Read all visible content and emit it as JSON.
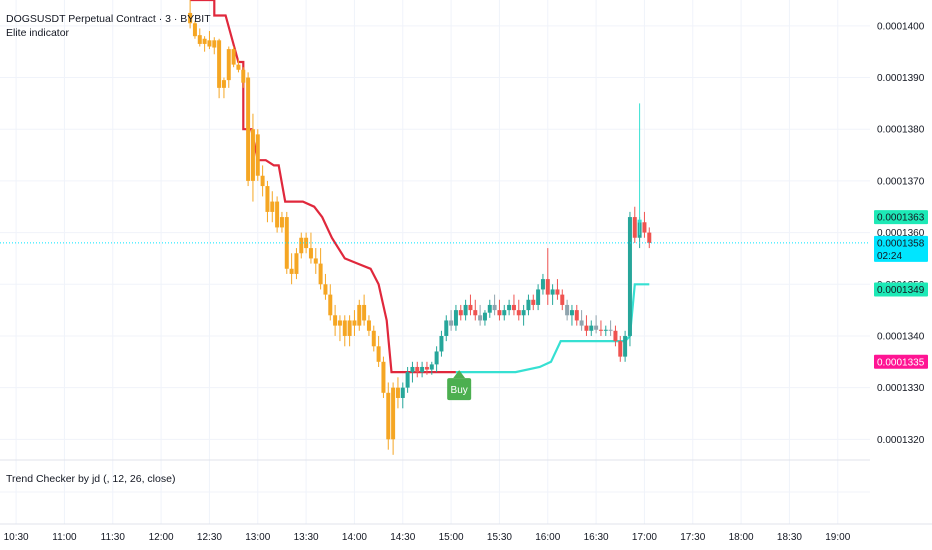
{
  "header": {
    "symbol_line": "DOGSUSDT Perpetual Contract · 3 · BYBIT",
    "indicator_name": "Elite indicator"
  },
  "pane2": {
    "indicator_label": "Trend Checker by jd (, 12, 26, close)"
  },
  "colors": {
    "background": "#ffffff",
    "grid": "#f0f3fa",
    "bull_candle": "#26a69a",
    "bear_candle": "#ef5350",
    "neutral_candle": "#90a4ae",
    "highlight_candle": "#f5a623",
    "resistance_line": "#e0283c",
    "support_line": "#36e0d2",
    "buy_label": "#4caf50"
  },
  "price_tags": [
    {
      "label": "0.0001363",
      "bg": "#1de9b6",
      "fg": "#131722"
    },
    {
      "label": "0.0001358",
      "sublabel": "02:24",
      "bg": "#00e5ff",
      "fg": "#131722"
    },
    {
      "label": "0.0001349",
      "bg": "#1de9b6",
      "fg": "#131722"
    },
    {
      "label": "0.0001335",
      "bg": "#ff1493",
      "fg": "#ffffff"
    }
  ],
  "buy_label": "Buy",
  "chart_data": {
    "type": "candlestick",
    "ylim": [
      0.0001316,
      0.0001405
    ],
    "y_ticks": [
      {
        "value": 0.000132,
        "label": "0.0001320"
      },
      {
        "value": 0.000133,
        "label": "0.0001330"
      },
      {
        "value": 0.000134,
        "label": "0.0001340"
      },
      {
        "value": 0.000135,
        "label": "0.0001350"
      },
      {
        "value": 0.000136,
        "label": "0.0001360"
      },
      {
        "value": 0.000137,
        "label": "0.0001370"
      },
      {
        "value": 0.000138,
        "label": "0.0001380"
      },
      {
        "value": 0.000139,
        "label": "0.0001390"
      },
      {
        "value": 0.00014,
        "label": "0.0001400"
      }
    ],
    "x_ticks": [
      "10:30",
      "11:00",
      "11:30",
      "12:00",
      "12:30",
      "13:00",
      "13:30",
      "14:00",
      "14:30",
      "15:00",
      "15:30",
      "16:00",
      "16:30",
      "17:00",
      "17:30",
      "18:00",
      "18:30",
      "19:00"
    ],
    "x_range_minutes": [
      620,
      1160
    ],
    "current_price": 0.0001358,
    "candles": [
      {
        "t": 738,
        "o": 0.00014025,
        "h": 0.0001406,
        "l": 0.00013995,
        "c": 0.00014005
      },
      {
        "t": 741,
        "o": 0.00014005,
        "h": 0.0001401,
        "l": 0.00013975,
        "c": 0.0001398
      },
      {
        "t": 744,
        "o": 0.00013982,
        "h": 0.00013995,
        "l": 0.0001396,
        "c": 0.00013965
      },
      {
        "t": 747,
        "o": 0.00013965,
        "h": 0.0001398,
        "l": 0.0001395,
        "c": 0.00013975
      },
      {
        "t": 750,
        "o": 0.00013972,
        "h": 0.0001399,
        "l": 0.00013955,
        "c": 0.0001396
      },
      {
        "t": 753,
        "o": 0.00013958,
        "h": 0.00013978,
        "l": 0.00013945,
        "c": 0.00013972
      },
      {
        "t": 756,
        "o": 0.00013972,
        "h": 0.00013975,
        "l": 0.0001386,
        "c": 0.0001388
      },
      {
        "t": 759,
        "o": 0.0001388,
        "h": 0.000139,
        "l": 0.0001386,
        "c": 0.00013895
      },
      {
        "t": 762,
        "o": 0.00013895,
        "h": 0.0001396,
        "l": 0.0001388,
        "c": 0.00013955
      },
      {
        "t": 765,
        "o": 0.00013955,
        "h": 0.0001396,
        "l": 0.0001392,
        "c": 0.00013925
      },
      {
        "t": 768,
        "o": 0.00013925,
        "h": 0.00013935,
        "l": 0.0001391,
        "c": 0.00013915
      },
      {
        "t": 771,
        "o": 0.00013915,
        "h": 0.0001392,
        "l": 0.0001388,
        "c": 0.0001389
      },
      {
        "t": 774,
        "o": 0.000139,
        "h": 0.0001391,
        "l": 0.0001369,
        "c": 0.000137
      },
      {
        "t": 777,
        "o": 0.000137,
        "h": 0.0001383,
        "l": 0.0001366,
        "c": 0.000138
      },
      {
        "t": 780,
        "o": 0.0001379,
        "h": 0.000138,
        "l": 0.000137,
        "c": 0.0001371
      },
      {
        "t": 783,
        "o": 0.0001371,
        "h": 0.0001373,
        "l": 0.0001367,
        "c": 0.0001369
      },
      {
        "t": 786,
        "o": 0.0001369,
        "h": 0.000137,
        "l": 0.0001362,
        "c": 0.0001364
      },
      {
        "t": 789,
        "o": 0.0001364,
        "h": 0.0001368,
        "l": 0.0001362,
        "c": 0.0001366
      },
      {
        "t": 792,
        "o": 0.0001366,
        "h": 0.0001367,
        "l": 0.000136,
        "c": 0.0001361
      },
      {
        "t": 795,
        "o": 0.0001361,
        "h": 0.0001364,
        "l": 0.000136,
        "c": 0.0001363
      },
      {
        "t": 798,
        "o": 0.0001363,
        "h": 0.0001364,
        "l": 0.0001352,
        "c": 0.0001353
      },
      {
        "t": 801,
        "o": 0.0001353,
        "h": 0.0001356,
        "l": 0.000135,
        "c": 0.0001352
      },
      {
        "t": 804,
        "o": 0.0001352,
        "h": 0.0001357,
        "l": 0.0001351,
        "c": 0.0001356
      },
      {
        "t": 807,
        "o": 0.0001356,
        "h": 0.000136,
        "l": 0.0001355,
        "c": 0.0001359
      },
      {
        "t": 810,
        "o": 0.0001359,
        "h": 0.000136,
        "l": 0.0001356,
        "c": 0.0001357
      },
      {
        "t": 813,
        "o": 0.0001357,
        "h": 0.000136,
        "l": 0.0001354,
        "c": 0.0001355
      },
      {
        "t": 816,
        "o": 0.0001355,
        "h": 0.0001357,
        "l": 0.0001352,
        "c": 0.0001354
      },
      {
        "t": 819,
        "o": 0.0001354,
        "h": 0.0001357,
        "l": 0.0001349,
        "c": 0.000135
      },
      {
        "t": 822,
        "o": 0.000135,
        "h": 0.0001352,
        "l": 0.0001347,
        "c": 0.0001348
      },
      {
        "t": 825,
        "o": 0.0001348,
        "h": 0.000135,
        "l": 0.0001343,
        "c": 0.0001344
      },
      {
        "t": 828,
        "o": 0.0001344,
        "h": 0.0001346,
        "l": 0.000134,
        "c": 0.0001342
      },
      {
        "t": 831,
        "o": 0.0001342,
        "h": 0.0001344,
        "l": 0.0001339,
        "c": 0.0001343
      },
      {
        "t": 834,
        "o": 0.0001343,
        "h": 0.0001344,
        "l": 0.0001338,
        "c": 0.000134
      },
      {
        "t": 837,
        "o": 0.000134,
        "h": 0.0001344,
        "l": 0.0001338,
        "c": 0.0001343
      },
      {
        "t": 840,
        "o": 0.0001343,
        "h": 0.0001345,
        "l": 0.000134,
        "c": 0.0001342
      },
      {
        "t": 843,
        "o": 0.0001342,
        "h": 0.0001347,
        "l": 0.0001341,
        "c": 0.0001346
      },
      {
        "t": 846,
        "o": 0.0001346,
        "h": 0.0001348,
        "l": 0.0001342,
        "c": 0.0001343
      },
      {
        "t": 849,
        "o": 0.0001343,
        "h": 0.0001344,
        "l": 0.000134,
        "c": 0.0001341
      },
      {
        "t": 852,
        "o": 0.0001341,
        "h": 0.0001342,
        "l": 0.0001337,
        "c": 0.0001338
      },
      {
        "t": 855,
        "o": 0.0001338,
        "h": 0.000134,
        "l": 0.0001334,
        "c": 0.0001335
      },
      {
        "t": 858,
        "o": 0.0001335,
        "h": 0.0001336,
        "l": 0.0001328,
        "c": 0.0001329
      },
      {
        "t": 861,
        "o": 0.0001329,
        "h": 0.0001331,
        "l": 0.0001318,
        "c": 0.000132
      },
      {
        "t": 864,
        "o": 0.000132,
        "h": 0.0001331,
        "l": 0.0001317,
        "c": 0.000133
      },
      {
        "t": 867,
        "o": 0.000133,
        "h": 0.0001332,
        "l": 0.0001326,
        "c": 0.0001328
      },
      {
        "t": 870,
        "o": 0.0001328,
        "h": 0.0001331,
        "l": 0.0001326,
        "c": 0.000133
      },
      {
        "t": 873,
        "o": 0.000133,
        "h": 0.0001334,
        "l": 0.0001329,
        "c": 0.0001333
      },
      {
        "t": 876,
        "o": 0.0001333,
        "h": 0.0001335,
        "l": 0.0001331,
        "c": 0.0001334
      },
      {
        "t": 879,
        "o": 0.0001334,
        "h": 0.0001335,
        "l": 0.0001332,
        "c": 0.0001333
      },
      {
        "t": 882,
        "o": 0.0001333,
        "h": 0.0001335,
        "l": 0.0001332,
        "c": 0.0001334
      },
      {
        "t": 885,
        "o": 0.0001334,
        "h": 0.0001335,
        "l": 0.00013325,
        "c": 0.00013335
      },
      {
        "t": 888,
        "o": 0.00013335,
        "h": 0.0001335,
        "l": 0.00013325,
        "c": 0.00013345
      },
      {
        "t": 891,
        "o": 0.00013345,
        "h": 0.0001338,
        "l": 0.0001333,
        "c": 0.0001337
      },
      {
        "t": 894,
        "o": 0.0001337,
        "h": 0.0001341,
        "l": 0.0001336,
        "c": 0.000134
      },
      {
        "t": 897,
        "o": 0.000134,
        "h": 0.0001344,
        "l": 0.0001339,
        "c": 0.0001343
      },
      {
        "t": 900,
        "o": 0.0001343,
        "h": 0.0001345,
        "l": 0.0001341,
        "c": 0.0001342
      },
      {
        "t": 903,
        "o": 0.0001342,
        "h": 0.0001346,
        "l": 0.0001341,
        "c": 0.0001345
      },
      {
        "t": 906,
        "o": 0.0001345,
        "h": 0.0001346,
        "l": 0.0001343,
        "c": 0.0001344
      },
      {
        "t": 909,
        "o": 0.0001344,
        "h": 0.0001347,
        "l": 0.0001343,
        "c": 0.0001346
      },
      {
        "t": 912,
        "o": 0.0001346,
        "h": 0.0001348,
        "l": 0.0001344,
        "c": 0.0001345
      },
      {
        "t": 915,
        "o": 0.0001345,
        "h": 0.0001347,
        "l": 0.0001343,
        "c": 0.0001344
      },
      {
        "t": 918,
        "o": 0.0001344,
        "h": 0.0001346,
        "l": 0.0001342,
        "c": 0.0001343
      },
      {
        "t": 921,
        "o": 0.0001343,
        "h": 0.0001345,
        "l": 0.0001342,
        "c": 0.00013445
      },
      {
        "t": 924,
        "o": 0.00013445,
        "h": 0.0001347,
        "l": 0.00013435,
        "c": 0.0001346
      },
      {
        "t": 927,
        "o": 0.0001346,
        "h": 0.0001348,
        "l": 0.0001344,
        "c": 0.0001345
      },
      {
        "t": 930,
        "o": 0.0001345,
        "h": 0.0001347,
        "l": 0.0001343,
        "c": 0.0001344
      },
      {
        "t": 933,
        "o": 0.0001344,
        "h": 0.0001346,
        "l": 0.0001343,
        "c": 0.0001345
      },
      {
        "t": 936,
        "o": 0.0001345,
        "h": 0.0001347,
        "l": 0.0001344,
        "c": 0.0001346
      },
      {
        "t": 939,
        "o": 0.0001346,
        "h": 0.0001348,
        "l": 0.0001344,
        "c": 0.0001345
      },
      {
        "t": 942,
        "o": 0.0001345,
        "h": 0.0001347,
        "l": 0.0001343,
        "c": 0.0001344
      },
      {
        "t": 945,
        "o": 0.0001344,
        "h": 0.0001346,
        "l": 0.0001342,
        "c": 0.0001345
      },
      {
        "t": 948,
        "o": 0.0001345,
        "h": 0.0001348,
        "l": 0.0001344,
        "c": 0.0001347
      },
      {
        "t": 951,
        "o": 0.0001347,
        "h": 0.0001348,
        "l": 0.0001345,
        "c": 0.0001346
      },
      {
        "t": 954,
        "o": 0.0001346,
        "h": 0.000135,
        "l": 0.0001345,
        "c": 0.0001349
      },
      {
        "t": 957,
        "o": 0.0001349,
        "h": 0.0001352,
        "l": 0.0001348,
        "c": 0.0001351
      },
      {
        "t": 960,
        "o": 0.0001351,
        "h": 0.0001357,
        "l": 0.0001346,
        "c": 0.0001348
      },
      {
        "t": 963,
        "o": 0.0001348,
        "h": 0.000135,
        "l": 0.0001346,
        "c": 0.0001349
      },
      {
        "t": 966,
        "o": 0.0001349,
        "h": 0.0001351,
        "l": 0.0001347,
        "c": 0.0001348
      },
      {
        "t": 969,
        "o": 0.0001348,
        "h": 0.0001349,
        "l": 0.0001345,
        "c": 0.0001346
      },
      {
        "t": 972,
        "o": 0.0001346,
        "h": 0.0001347,
        "l": 0.0001343,
        "c": 0.0001344
      },
      {
        "t": 975,
        "o": 0.0001344,
        "h": 0.0001346,
        "l": 0.0001342,
        "c": 0.0001345
      },
      {
        "t": 978,
        "o": 0.0001345,
        "h": 0.0001346,
        "l": 0.0001342,
        "c": 0.0001343
      },
      {
        "t": 981,
        "o": 0.0001343,
        "h": 0.0001345,
        "l": 0.0001341,
        "c": 0.0001342
      },
      {
        "t": 984,
        "o": 0.0001342,
        "h": 0.0001344,
        "l": 0.000134,
        "c": 0.0001341
      },
      {
        "t": 987,
        "o": 0.0001341,
        "h": 0.0001343,
        "l": 0.000134,
        "c": 0.0001342
      },
      {
        "t": 990,
        "o": 0.0001342,
        "h": 0.0001344,
        "l": 0.00013405,
        "c": 0.00013412
      },
      {
        "t": 993,
        "o": 0.00013412,
        "h": 0.0001343,
        "l": 0.000134,
        "c": 0.0001341
      },
      {
        "t": 996,
        "o": 0.0001341,
        "h": 0.0001342,
        "l": 0.000134,
        "c": 0.00013412
      },
      {
        "t": 999,
        "o": 0.00013412,
        "h": 0.0001343,
        "l": 0.000134,
        "c": 0.0001341
      },
      {
        "t": 1002,
        "o": 0.0001341,
        "h": 0.0001342,
        "l": 0.0001338,
        "c": 0.0001339
      },
      {
        "t": 1005,
        "o": 0.0001339,
        "h": 0.000134,
        "l": 0.0001335,
        "c": 0.0001336
      },
      {
        "t": 1008,
        "o": 0.0001336,
        "h": 0.0001341,
        "l": 0.0001335,
        "c": 0.000134
      },
      {
        "t": 1011,
        "o": 0.000134,
        "h": 0.0001364,
        "l": 0.0001338,
        "c": 0.0001363
      },
      {
        "t": 1014,
        "o": 0.0001363,
        "h": 0.0001365,
        "l": 0.0001358,
        "c": 0.0001359
      },
      {
        "t": 1017,
        "o": 0.0001359,
        "h": 0.0001363,
        "l": 0.0001357,
        "c": 0.0001362
      },
      {
        "t": 1020,
        "o": 0.0001362,
        "h": 0.0001364,
        "l": 0.0001359,
        "c": 0.000136
      },
      {
        "t": 1023,
        "o": 0.000136,
        "h": 0.0001361,
        "l": 0.0001357,
        "c": 0.0001358
      }
    ],
    "highlight_candles": [
      {
        "t": 1017,
        "o": 0.0001362,
        "h": 0.0001385,
        "l": 0.00013595,
        "c": 0.00013625
      }
    ],
    "resistance_line": [
      [
        738,
        0.0001405
      ],
      [
        753,
        0.0001405
      ],
      [
        753,
        0.0001402
      ],
      [
        760,
        0.0001402
      ],
      [
        768,
        0.0001393
      ],
      [
        771,
        0.0001393
      ],
      [
        771,
        0.000138
      ],
      [
        776,
        0.000138
      ],
      [
        780,
        0.0001374
      ],
      [
        785,
        0.0001374
      ],
      [
        790,
        0.0001373
      ],
      [
        793,
        0.0001373
      ],
      [
        797,
        0.0001366
      ],
      [
        808,
        0.0001366
      ],
      [
        815,
        0.0001365
      ],
      [
        820,
        0.0001363
      ],
      [
        826,
        0.0001359
      ],
      [
        834,
        0.0001355
      ],
      [
        842,
        0.0001354
      ],
      [
        850,
        0.0001353
      ],
      [
        855,
        0.000135
      ],
      [
        860,
        0.0001343
      ],
      [
        863,
        0.0001333
      ],
      [
        903,
        0.0001333
      ]
    ],
    "support_line": [
      [
        903,
        0.0001333
      ],
      [
        940,
        0.0001333
      ],
      [
        955,
        0.0001334
      ],
      [
        962,
        0.0001335
      ],
      [
        968,
        0.0001339
      ],
      [
        1008,
        0.0001339
      ],
      [
        1011,
        0.000134
      ],
      [
        1014,
        0.000135
      ],
      [
        1023,
        0.000135
      ]
    ],
    "buy_signal": {
      "t": 905,
      "price": 0.0001333
    }
  }
}
